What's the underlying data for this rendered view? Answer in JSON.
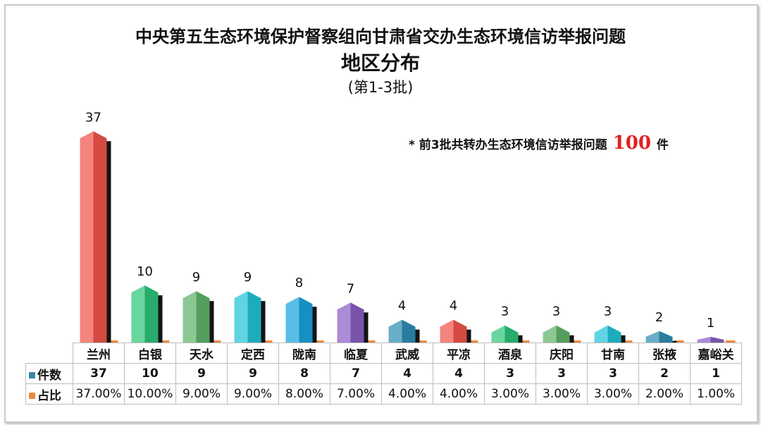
{
  "header": {
    "title_line1": "中央第五生态环境保护督察组向甘肃省交办生态环境信访举报问题",
    "title_line2": "地区分布",
    "subtitle": "(第1-3批)"
  },
  "note": {
    "prefix": "*  前3批共转办生态环境信访举报问题",
    "total": "100",
    "unit": "件"
  },
  "legend": {
    "count_label": "件数",
    "count_color": "#3a86a8",
    "share_label": "占比",
    "share_color": "#ed8a3c"
  },
  "chart_data": {
    "type": "bar",
    "title": "中央第五生态环境保护督察组向甘肃省交办生态环境信访举报问题 地区分布",
    "subtitle": "(第1-3批)",
    "categories": [
      "兰州",
      "白银",
      "天水",
      "定西",
      "陇南",
      "临夏",
      "武威",
      "平凉",
      "酒泉",
      "庆阳",
      "甘南",
      "张掖",
      "嘉峪关"
    ],
    "series": [
      {
        "name": "件数",
        "values": [
          37,
          10,
          9,
          9,
          8,
          7,
          4,
          4,
          3,
          3,
          3,
          2,
          1
        ]
      },
      {
        "name": "占比",
        "values": [
          "37.00%",
          "10.00%",
          "9.00%",
          "9.00%",
          "8.00%",
          "7.00%",
          "4.00%",
          "4.00%",
          "3.00%",
          "3.00%",
          "3.00%",
          "2.00%",
          "1.00%"
        ]
      }
    ],
    "ylim": [
      0,
      40
    ],
    "grid": false,
    "bar_colors": [
      "#f0544a",
      "#2ec47a",
      "#5fb36a",
      "#22c3d6",
      "#1aa3dc",
      "#8a5ec4",
      "#2f8db2",
      "#f0544a",
      "#2ec47a",
      "#5fb36a",
      "#22c3d6",
      "#2f8db2",
      "#8a5ec4"
    ]
  }
}
